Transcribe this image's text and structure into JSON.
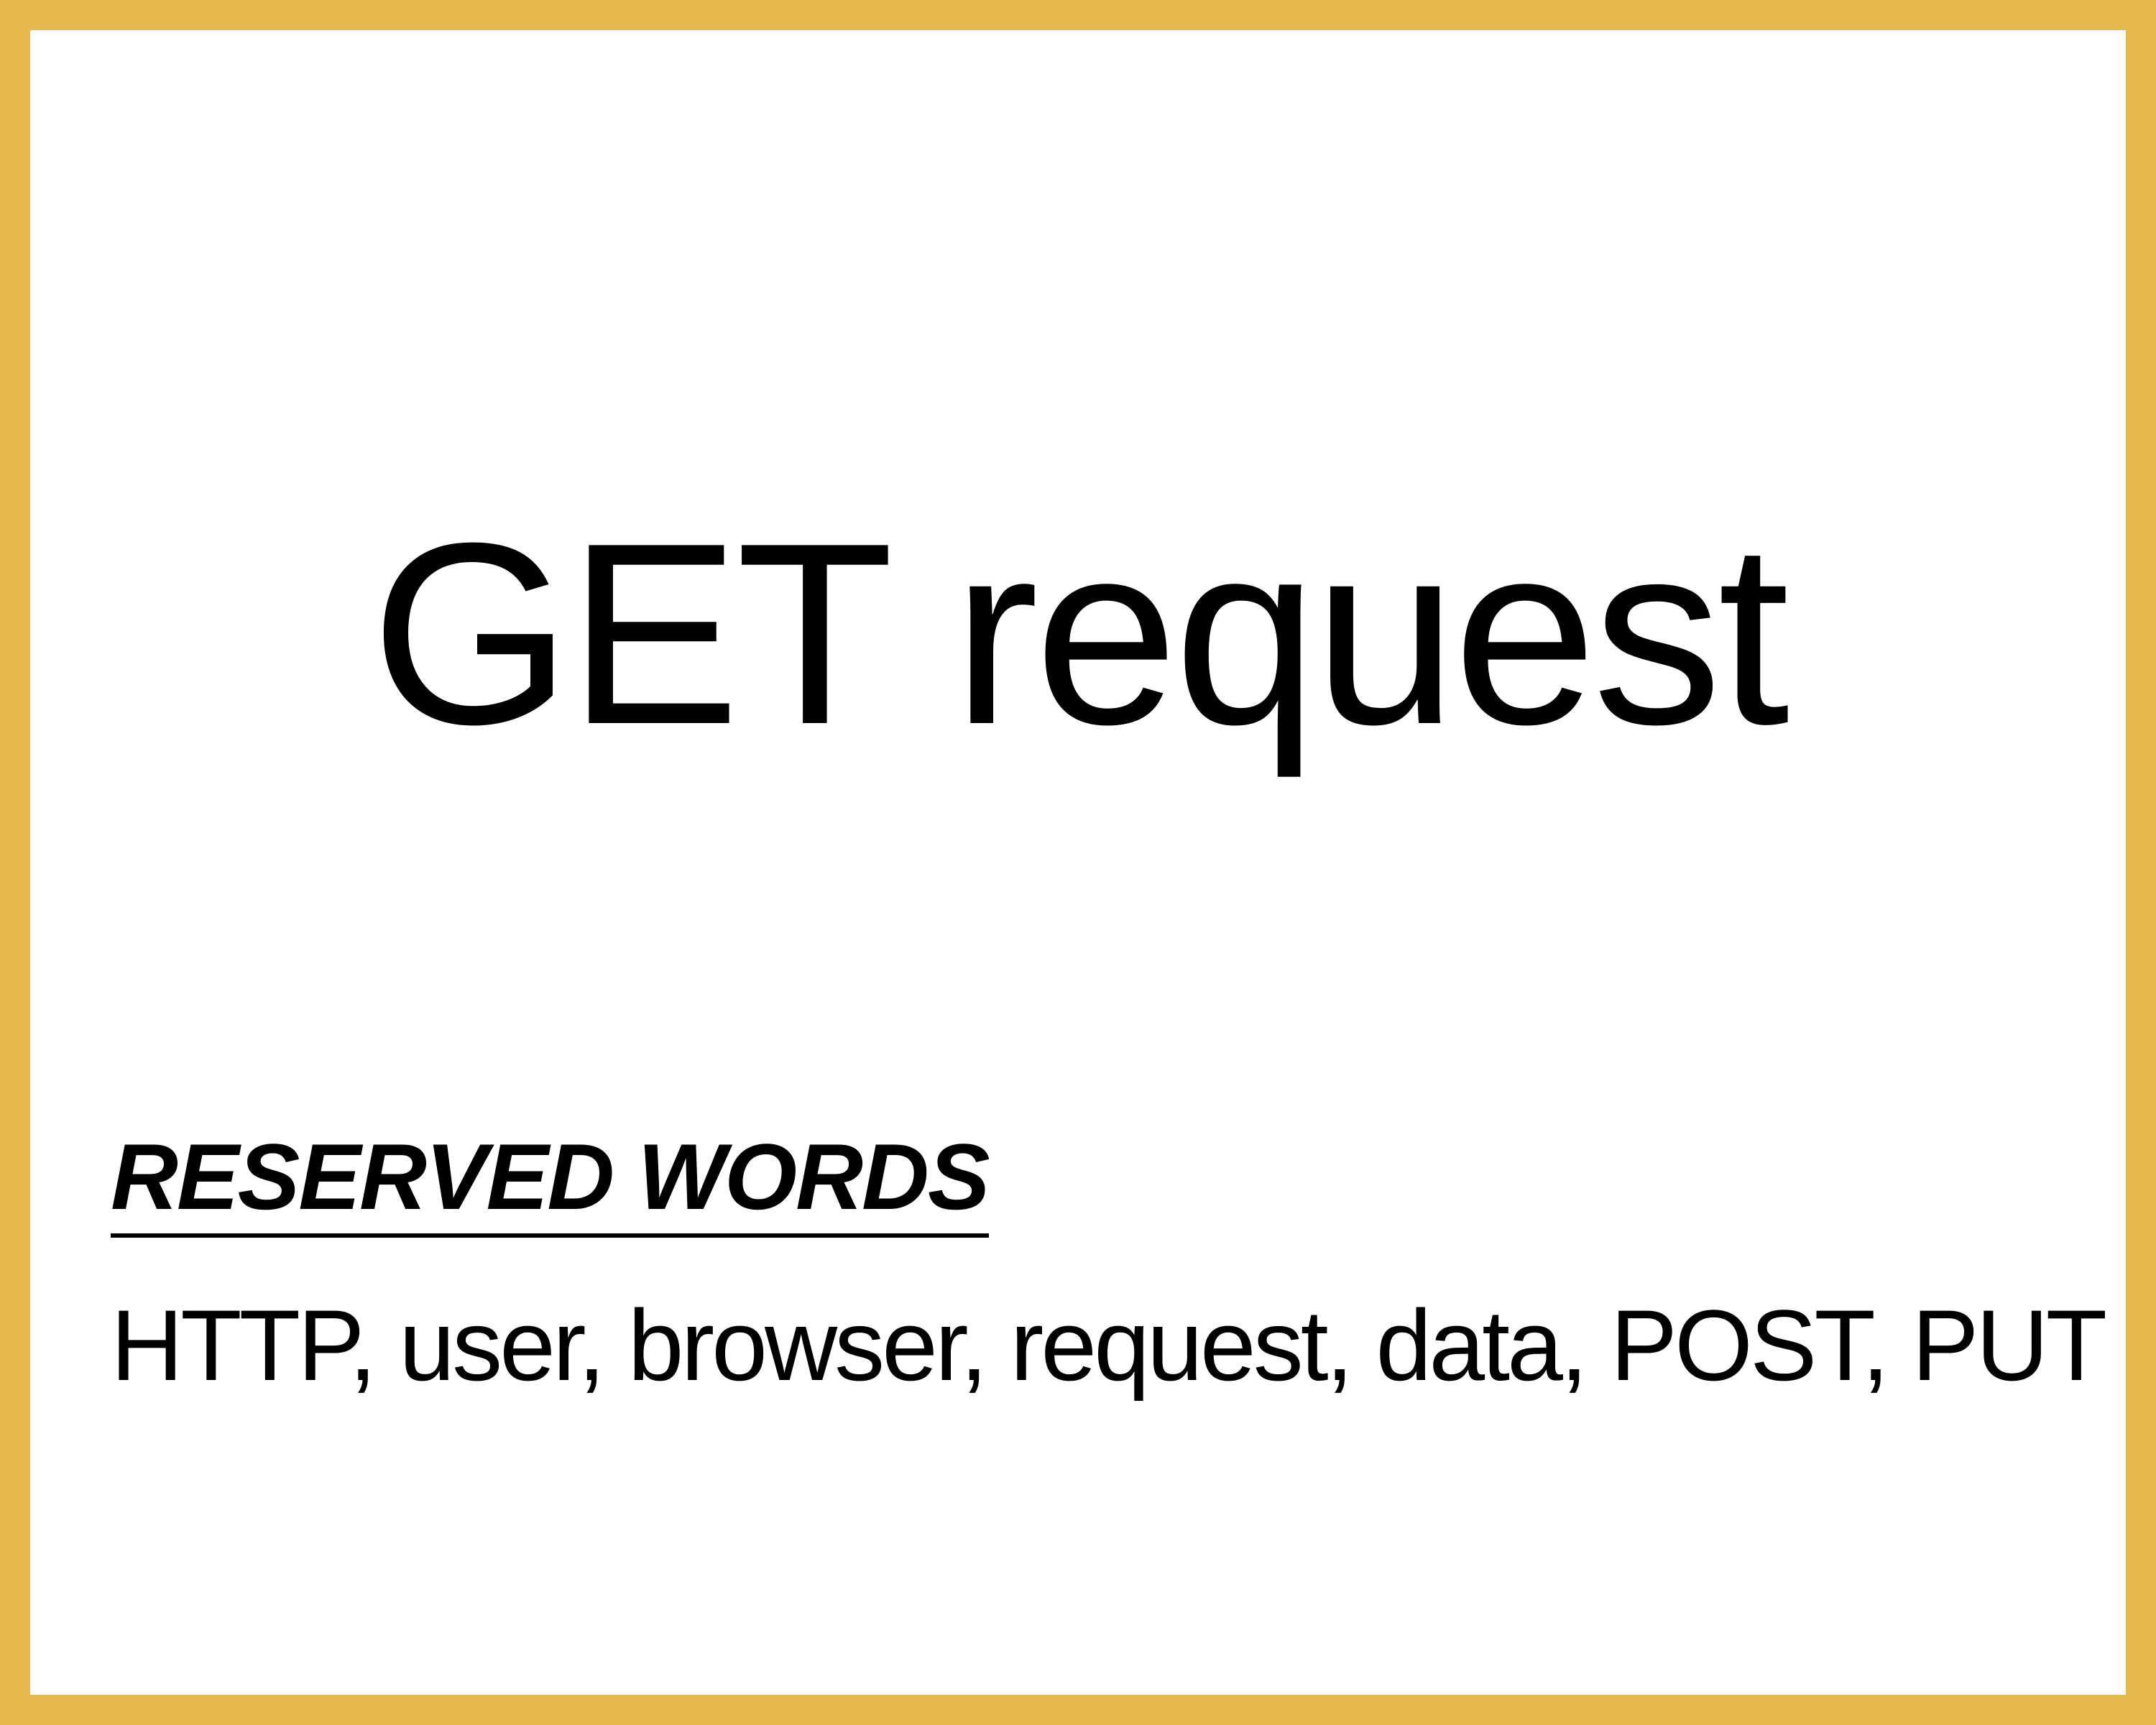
{
  "card": {
    "title": "GET request",
    "reserved_heading": "RESERVED WORDS",
    "reserved_words": "HTTP, user, browser, request, data, POST, PUT",
    "border_color": "#E5B84E"
  }
}
